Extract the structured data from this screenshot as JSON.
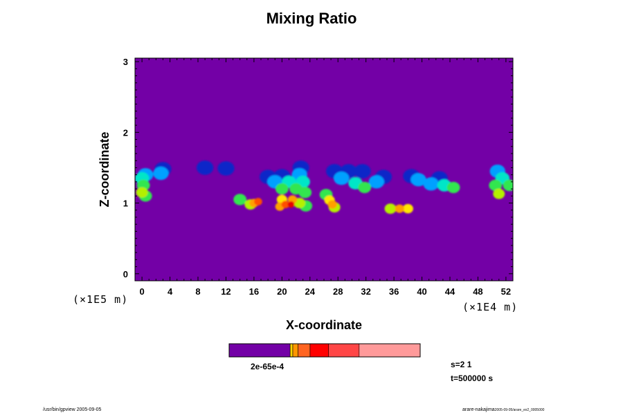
{
  "chart_data": {
    "type": "heatmap",
    "title": "Mixing Ratio",
    "xlabel": "X-coordinate",
    "ylabel": "Z-coordinate",
    "x_ticks": [
      "0",
      "4",
      "8",
      "12",
      "16",
      "20",
      "24",
      "28",
      "32",
      "36",
      "40",
      "44",
      "48",
      "52"
    ],
    "y_ticks": [
      "0",
      "1",
      "2",
      "3"
    ],
    "xlim": [
      -1,
      53
    ],
    "ylim": [
      -0.1,
      3.05
    ],
    "x_scale_note": "(×1E4 m)",
    "y_scale_note": "(×1E5 m)",
    "background_color": "#7300a6",
    "colorbar_colors": [
      "#7300a6",
      "#ffd200",
      "#ff9600",
      "#ff6420",
      "#ff0000",
      "#ff4646",
      "#ff9a9a"
    ],
    "colorbar_label": "2e-65e-4",
    "cells": [
      {
        "x": 0.5,
        "z": 1.4,
        "v": 2
      },
      {
        "x": 0.0,
        "z": 1.35,
        "v": 3
      },
      {
        "x": 0.2,
        "z": 1.25,
        "v": 4
      },
      {
        "x": 0.0,
        "z": 1.15,
        "v": 5
      },
      {
        "x": 0.5,
        "z": 1.1,
        "v": 4
      },
      {
        "x": 3.0,
        "z": 1.48,
        "v": 1
      },
      {
        "x": 2.7,
        "z": 1.42,
        "v": 2
      },
      {
        "x": 9.0,
        "z": 1.5,
        "v": 1
      },
      {
        "x": 12.0,
        "z": 1.49,
        "v": 1
      },
      {
        "x": 14.0,
        "z": 1.05,
        "v": 4
      },
      {
        "x": 16.0,
        "z": 1.0,
        "v": 7
      },
      {
        "x": 16.6,
        "z": 1.02,
        "v": 8
      },
      {
        "x": 15.5,
        "z": 0.98,
        "v": 5
      },
      {
        "x": 18.0,
        "z": 1.37,
        "v": 1
      },
      {
        "x": 20.0,
        "z": 1.38,
        "v": 1
      },
      {
        "x": 19.0,
        "z": 1.3,
        "v": 2
      },
      {
        "x": 21.0,
        "z": 1.3,
        "v": 3
      },
      {
        "x": 22.5,
        "z": 1.4,
        "v": 2
      },
      {
        "x": 22.7,
        "z": 1.5,
        "v": 1
      },
      {
        "x": 23.0,
        "z": 1.3,
        "v": 3
      },
      {
        "x": 20.0,
        "z": 1.2,
        "v": 4
      },
      {
        "x": 22.0,
        "z": 1.2,
        "v": 4
      },
      {
        "x": 23.3,
        "z": 1.15,
        "v": 4
      },
      {
        "x": 20.0,
        "z": 1.05,
        "v": 6
      },
      {
        "x": 21.5,
        "z": 1.05,
        "v": 7
      },
      {
        "x": 20.5,
        "z": 0.98,
        "v": 8
      },
      {
        "x": 21.3,
        "z": 0.98,
        "v": 9
      },
      {
        "x": 19.7,
        "z": 0.95,
        "v": 7
      },
      {
        "x": 22.5,
        "z": 1.0,
        "v": 5
      },
      {
        "x": 23.4,
        "z": 0.96,
        "v": 4
      },
      {
        "x": 27.5,
        "z": 1.45,
        "v": 1
      },
      {
        "x": 29.5,
        "z": 1.45,
        "v": 1
      },
      {
        "x": 31.5,
        "z": 1.45,
        "v": 1
      },
      {
        "x": 28.5,
        "z": 1.35,
        "v": 2
      },
      {
        "x": 30.5,
        "z": 1.28,
        "v": 3
      },
      {
        "x": 31.8,
        "z": 1.22,
        "v": 4
      },
      {
        "x": 26.3,
        "z": 1.12,
        "v": 4
      },
      {
        "x": 26.8,
        "z": 1.04,
        "v": 6
      },
      {
        "x": 27.2,
        "z": 0.98,
        "v": 7
      },
      {
        "x": 27.5,
        "z": 0.94,
        "v": 5
      },
      {
        "x": 34.5,
        "z": 1.37,
        "v": 1
      },
      {
        "x": 33.5,
        "z": 1.3,
        "v": 2
      },
      {
        "x": 35.5,
        "z": 0.92,
        "v": 5
      },
      {
        "x": 36.8,
        "z": 0.92,
        "v": 7
      },
      {
        "x": 38.0,
        "z": 0.92,
        "v": 6
      },
      {
        "x": 38.5,
        "z": 1.38,
        "v": 1
      },
      {
        "x": 39.5,
        "z": 1.33,
        "v": 2
      },
      {
        "x": 42.5,
        "z": 1.35,
        "v": 1
      },
      {
        "x": 41.3,
        "z": 1.27,
        "v": 2
      },
      {
        "x": 43.2,
        "z": 1.25,
        "v": 3
      },
      {
        "x": 44.5,
        "z": 1.22,
        "v": 4
      },
      {
        "x": 50.8,
        "z": 1.45,
        "v": 2
      },
      {
        "x": 51.5,
        "z": 1.35,
        "v": 3
      },
      {
        "x": 50.5,
        "z": 1.25,
        "v": 4
      },
      {
        "x": 51.0,
        "z": 1.13,
        "v": 5
      },
      {
        "x": 52.5,
        "z": 1.25,
        "v": 4
      }
    ]
  },
  "annotations": {
    "step": "s=2 1",
    "time": "t=500000 s"
  },
  "footer": {
    "left": "/usr/bin/gpview 2005-09-05",
    "right_main": "arare-nakajima",
    "right_small": "2005-09-05/arare_ex2_0005000"
  }
}
